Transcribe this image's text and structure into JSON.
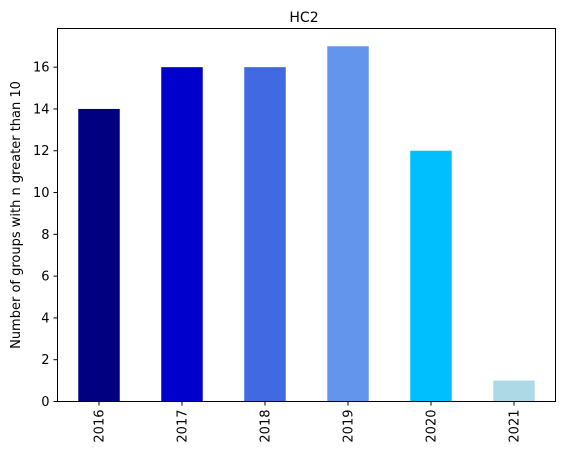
{
  "chart_data": {
    "type": "bar",
    "title": "HC2",
    "xlabel": "",
    "ylabel": "Number of groups with n greater than 10",
    "categories": [
      "2016",
      "2017",
      "2018",
      "2019",
      "2020",
      "2021"
    ],
    "values": [
      14,
      16,
      16,
      17,
      12,
      1
    ],
    "colors": [
      "#000080",
      "#0000cd",
      "#4169e1",
      "#6495ed",
      "#00bfff",
      "#add8e6"
    ],
    "ylim": [
      0,
      17.85
    ],
    "yticks": [
      "0",
      "2",
      "4",
      "6",
      "8",
      "10",
      "12",
      "14",
      "16"
    ],
    "grid": false,
    "legend": "none"
  }
}
